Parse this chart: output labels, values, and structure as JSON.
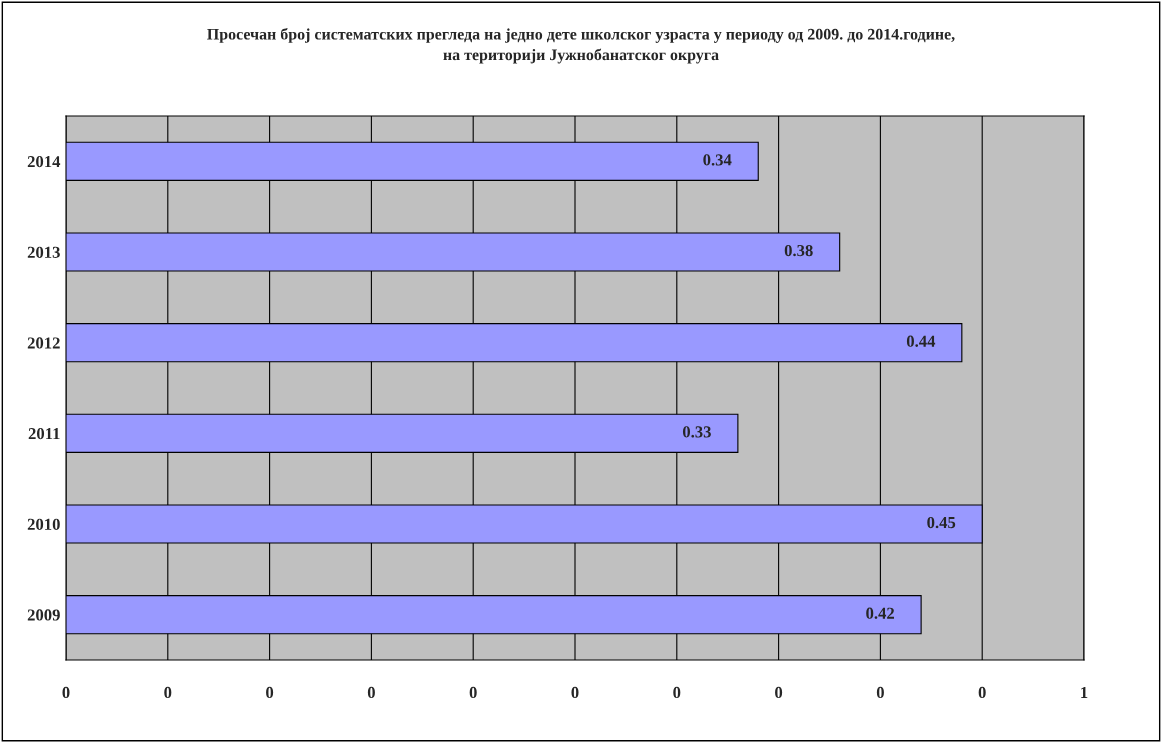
{
  "chart_data": {
    "type": "bar",
    "orientation": "horizontal",
    "title": "Просечан број систематских прегледа на једно дете школског узраста у периоду од 2009. до 2014.године,\nна територији Јужнобанатског округа",
    "categories": [
      "2014",
      "2013",
      "2012",
      "2011",
      "2010",
      "2009"
    ],
    "values": [
      0.34,
      0.38,
      0.44,
      0.33,
      0.45,
      0.42
    ],
    "color": "#9999ff",
    "xlim": [
      0,
      0.5
    ],
    "xticks": [
      0,
      {
        "value": 0.05,
        "label": "0"
      },
      {
        "value": 0.1,
        "label": "0"
      },
      {
        "value": 0.15,
        "label": "0"
      },
      {
        "value": 0.2,
        "label": "0"
      },
      {
        "value": 0.25,
        "label": "0"
      },
      {
        "value": 0.3,
        "label": "0"
      },
      {
        "value": 0.35,
        "label": "0"
      },
      {
        "value": 0.4,
        "label": "0"
      },
      {
        "value": 0.45,
        "label": "0"
      },
      {
        "value": 0.5,
        "label": "1"
      }
    ],
    "grid": "x",
    "data_labels": true
  }
}
